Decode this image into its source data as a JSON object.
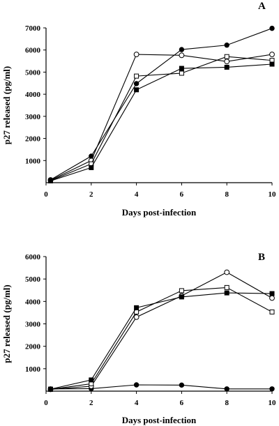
{
  "chart_data": [
    {
      "type": "line",
      "panel_label": "A",
      "xlabel": "Days post-infection",
      "ylabel": "p27 released (pg/ml)",
      "xlim": [
        0,
        10
      ],
      "ylim": [
        0,
        7000
      ],
      "xticks": [
        "0",
        "2",
        "4",
        "6",
        "8",
        "10"
      ],
      "yticks": [
        "1000",
        "2000",
        "3000",
        "4000",
        "5000",
        "6000",
        "7000"
      ],
      "grid": false,
      "legend": "none",
      "series": [
        {
          "marker": "filled-circle",
          "x": [
            0.2,
            2,
            4,
            6,
            8,
            10
          ],
          "y": [
            130,
            1200,
            4480,
            6020,
            6220,
            6980
          ]
        },
        {
          "marker": "open-circle",
          "x": [
            0.2,
            2,
            4,
            6,
            8,
            10
          ],
          "y": [
            110,
            1000,
            5800,
            5760,
            5480,
            5800
          ]
        },
        {
          "marker": "open-square",
          "x": [
            0.2,
            2,
            4,
            6,
            8,
            10
          ],
          "y": [
            90,
            850,
            4820,
            4950,
            5700,
            5530
          ]
        },
        {
          "marker": "filled-square",
          "x": [
            0.2,
            2,
            4,
            6,
            8,
            10
          ],
          "y": [
            80,
            680,
            4200,
            5170,
            5220,
            5360
          ]
        }
      ]
    },
    {
      "type": "line",
      "panel_label": "B",
      "xlabel": "Days post-infection",
      "ylabel": "p27 released (pg/ml)",
      "xlim": [
        0,
        10
      ],
      "ylim": [
        0,
        6000
      ],
      "xticks": [
        "0",
        "2",
        "4",
        "6",
        "8",
        "10"
      ],
      "yticks": [
        "1000",
        "2000",
        "3000",
        "4000",
        "5000",
        "6000"
      ],
      "grid": false,
      "legend": "none",
      "series": [
        {
          "marker": "filled-circle",
          "x": [
            0.2,
            2,
            4,
            6,
            8,
            10
          ],
          "y": [
            100,
            110,
            280,
            270,
            100,
            100
          ]
        },
        {
          "marker": "open-circle",
          "x": [
            0.2,
            2,
            4,
            6,
            8,
            10
          ],
          "y": [
            80,
            220,
            3300,
            4250,
            5300,
            4150
          ]
        },
        {
          "marker": "open-square",
          "x": [
            0.2,
            2,
            4,
            6,
            8,
            10
          ],
          "y": [
            80,
            330,
            3530,
            4480,
            4620,
            3530
          ]
        },
        {
          "marker": "filled-square",
          "x": [
            0.2,
            2,
            4,
            6,
            8,
            10
          ],
          "y": [
            90,
            500,
            3720,
            4200,
            4380,
            4350
          ]
        }
      ]
    }
  ]
}
